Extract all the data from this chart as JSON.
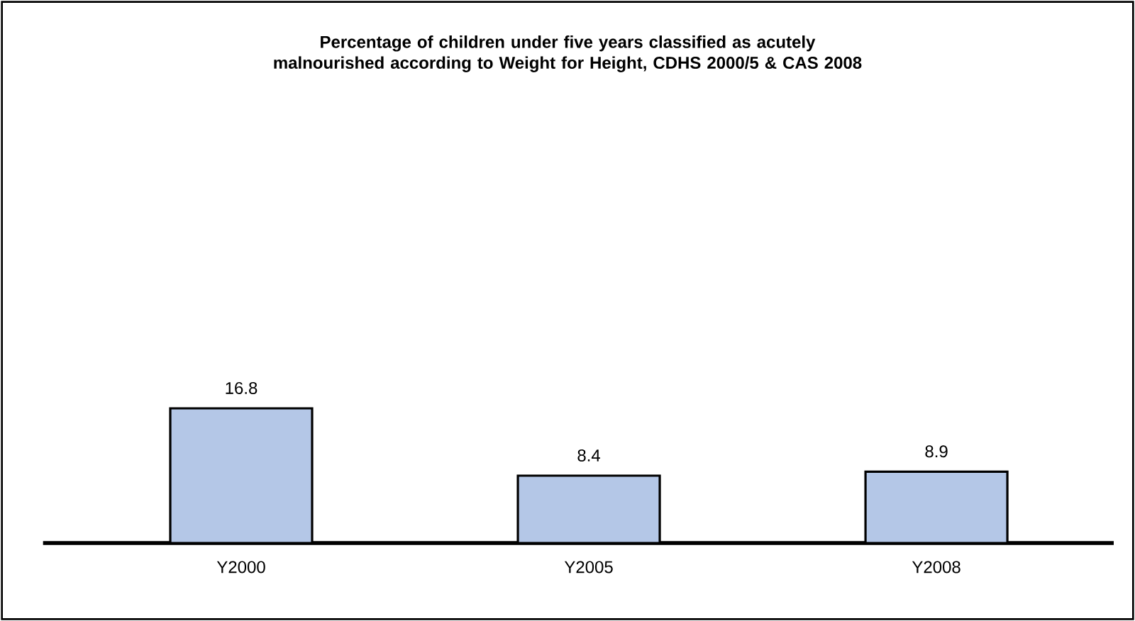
{
  "chart_data": {
    "type": "bar",
    "title": "Percentage of children under five years classified as acutely malnourished according to Weight for Height, CDHS 2000/5 & CAS 2008",
    "categories": [
      "Y2000",
      "Y2005",
      "Y2008"
    ],
    "values": [
      16.8,
      8.4,
      8.9
    ],
    "color": "#b4c7e7",
    "data_labels": true
  }
}
